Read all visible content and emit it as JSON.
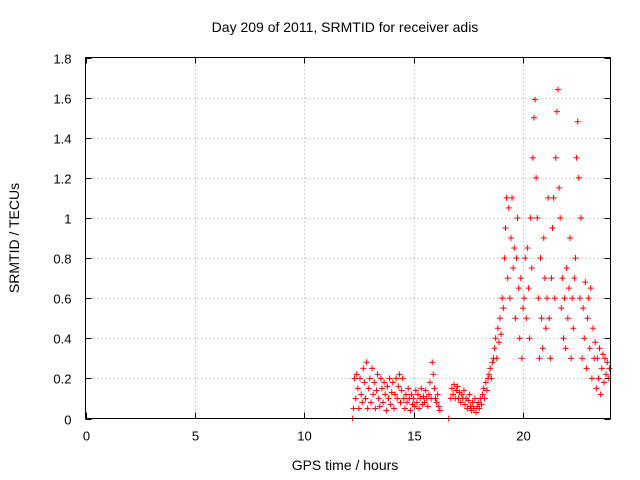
{
  "chart_data": {
    "type": "scatter",
    "title": "Day 209 of 2011, SRMTID for receiver adis",
    "xlabel": "GPS time / hours",
    "ylabel": "SRMTID / TECUs",
    "xlim": [
      0,
      24
    ],
    "ylim": [
      0,
      1.8
    ],
    "xticks": [
      0,
      5,
      10,
      15,
      20
    ],
    "yticks": [
      0,
      0.2,
      0.4,
      0.6,
      0.8,
      1,
      1.2,
      1.4,
      1.6,
      1.8
    ],
    "grid": true,
    "marker": "plus",
    "color": "#ff0000",
    "series": [
      {
        "name": "SRMTID",
        "points": [
          [
            12.2,
            0.0
          ],
          [
            12.25,
            0.05
          ],
          [
            12.3,
            0.2
          ],
          [
            12.35,
            0.1
          ],
          [
            12.4,
            0.22
          ],
          [
            12.45,
            0.15
          ],
          [
            12.5,
            0.05
          ],
          [
            12.55,
            0.2
          ],
          [
            12.6,
            0.12
          ],
          [
            12.65,
            0.08
          ],
          [
            12.7,
            0.25
          ],
          [
            12.75,
            0.18
          ],
          [
            12.8,
            0.1
          ],
          [
            12.85,
            0.28
          ],
          [
            12.9,
            0.05
          ],
          [
            12.95,
            0.15
          ],
          [
            13.0,
            0.2
          ],
          [
            13.05,
            0.08
          ],
          [
            13.1,
            0.25
          ],
          [
            13.15,
            0.12
          ],
          [
            13.2,
            0.18
          ],
          [
            13.25,
            0.05
          ],
          [
            13.3,
            0.14
          ],
          [
            13.35,
            0.22
          ],
          [
            13.4,
            0.1
          ],
          [
            13.45,
            0.06
          ],
          [
            13.5,
            0.2
          ],
          [
            13.55,
            0.15
          ],
          [
            13.6,
            0.08
          ],
          [
            13.65,
            0.18
          ],
          [
            13.7,
            0.12
          ],
          [
            13.75,
            0.04
          ],
          [
            13.8,
            0.16
          ],
          [
            13.85,
            0.1
          ],
          [
            13.9,
            0.2
          ],
          [
            13.95,
            0.07
          ],
          [
            14.0,
            0.13
          ],
          [
            14.05,
            0.18
          ],
          [
            14.1,
            0.05
          ],
          [
            14.15,
            0.12
          ],
          [
            14.2,
            0.2
          ],
          [
            14.25,
            0.1
          ],
          [
            14.3,
            0.16
          ],
          [
            14.35,
            0.22
          ],
          [
            14.4,
            0.08
          ],
          [
            14.45,
            0.14
          ],
          [
            14.5,
            0.2
          ],
          [
            14.55,
            0.1
          ],
          [
            14.6,
            0.05
          ],
          [
            14.65,
            0.12
          ],
          [
            14.7,
            0.08
          ],
          [
            14.75,
            0.15
          ],
          [
            14.8,
            0.1
          ],
          [
            14.85,
            0.04
          ],
          [
            14.9,
            0.12
          ],
          [
            14.95,
            0.07
          ],
          [
            15.0,
            0.1
          ],
          [
            15.05,
            0.06
          ],
          [
            15.1,
            0.14
          ],
          [
            15.15,
            0.08
          ],
          [
            15.2,
            0.12
          ],
          [
            15.25,
            0.05
          ],
          [
            15.3,
            0.1
          ],
          [
            15.35,
            0.15
          ],
          [
            15.4,
            0.07
          ],
          [
            15.45,
            0.11
          ],
          [
            15.5,
            0.08
          ],
          [
            15.55,
            0.14
          ],
          [
            15.6,
            0.1
          ],
          [
            15.65,
            0.06
          ],
          [
            15.7,
            0.12
          ],
          [
            15.75,
            0.18
          ],
          [
            15.8,
            0.1
          ],
          [
            15.85,
            0.28
          ],
          [
            15.9,
            0.22
          ],
          [
            15.95,
            0.15
          ],
          [
            16.0,
            0.1
          ],
          [
            16.05,
            0.08
          ],
          [
            16.1,
            0.12
          ],
          [
            16.15,
            0.06
          ],
          [
            16.2,
            0.04
          ],
          [
            16.6,
            0.0
          ],
          [
            16.7,
            0.1
          ],
          [
            16.75,
            0.15
          ],
          [
            16.8,
            0.12
          ],
          [
            16.85,
            0.17
          ],
          [
            16.9,
            0.1
          ],
          [
            16.95,
            0.14
          ],
          [
            17.0,
            0.16
          ],
          [
            17.05,
            0.1
          ],
          [
            17.1,
            0.13
          ],
          [
            17.15,
            0.08
          ],
          [
            17.2,
            0.12
          ],
          [
            17.25,
            0.1
          ],
          [
            17.3,
            0.14
          ],
          [
            17.35,
            0.07
          ],
          [
            17.4,
            0.1
          ],
          [
            17.45,
            0.05
          ],
          [
            17.5,
            0.09
          ],
          [
            17.55,
            0.12
          ],
          [
            17.6,
            0.06
          ],
          [
            17.65,
            0.04
          ],
          [
            17.7,
            0.08
          ],
          [
            17.75,
            0.05
          ],
          [
            17.8,
            0.1
          ],
          [
            17.85,
            0.03
          ],
          [
            17.9,
            0.06
          ],
          [
            17.95,
            0.08
          ],
          [
            18.0,
            0.05
          ],
          [
            18.05,
            0.1
          ],
          [
            18.1,
            0.07
          ],
          [
            18.15,
            0.12
          ],
          [
            18.2,
            0.15
          ],
          [
            18.25,
            0.1
          ],
          [
            18.3,
            0.18
          ],
          [
            18.35,
            0.14
          ],
          [
            18.4,
            0.2
          ],
          [
            18.45,
            0.22
          ],
          [
            18.5,
            0.25
          ],
          [
            18.55,
            0.2
          ],
          [
            18.6,
            0.28
          ],
          [
            18.65,
            0.3
          ],
          [
            18.7,
            0.35
          ],
          [
            18.75,
            0.4
          ],
          [
            18.8,
            0.3
          ],
          [
            18.85,
            0.45
          ],
          [
            18.9,
            0.38
          ],
          [
            18.95,
            0.5
          ],
          [
            19.0,
            0.42
          ],
          [
            19.05,
            0.6
          ],
          [
            19.1,
            0.55
          ],
          [
            19.15,
            0.8
          ],
          [
            19.2,
            0.95
          ],
          [
            19.25,
            1.1
          ],
          [
            19.3,
            0.7
          ],
          [
            19.35,
            1.05
          ],
          [
            19.4,
            0.6
          ],
          [
            19.45,
            0.9
          ],
          [
            19.5,
            1.1
          ],
          [
            19.55,
            0.75
          ],
          [
            19.6,
            0.85
          ],
          [
            19.65,
            0.5
          ],
          [
            19.7,
            0.8
          ],
          [
            19.75,
            1.0
          ],
          [
            19.8,
            0.65
          ],
          [
            19.85,
            0.4
          ],
          [
            19.9,
            0.7
          ],
          [
            19.95,
            0.3
          ],
          [
            20.0,
            0.55
          ],
          [
            20.05,
            0.6
          ],
          [
            20.1,
            0.8
          ],
          [
            20.15,
            0.5
          ],
          [
            20.2,
            0.85
          ],
          [
            20.25,
            0.65
          ],
          [
            20.3,
            0.4
          ],
          [
            20.35,
            1.0
          ],
          [
            20.4,
            0.75
          ],
          [
            20.45,
            1.3
          ],
          [
            20.5,
            1.5
          ],
          [
            20.55,
            1.59
          ],
          [
            20.6,
            1.2
          ],
          [
            20.65,
            1.0
          ],
          [
            20.7,
            0.6
          ],
          [
            20.75,
            0.3
          ],
          [
            20.8,
            0.8
          ],
          [
            20.85,
            0.5
          ],
          [
            20.9,
            0.35
          ],
          [
            20.95,
            0.9
          ],
          [
            21.0,
            0.7
          ],
          [
            21.05,
            0.45
          ],
          [
            21.1,
            0.6
          ],
          [
            21.15,
            1.1
          ],
          [
            21.2,
            0.5
          ],
          [
            21.25,
            0.3
          ],
          [
            21.3,
            0.7
          ],
          [
            21.35,
            0.95
          ],
          [
            21.4,
            1.1
          ],
          [
            21.45,
            0.6
          ],
          [
            21.5,
            1.3
          ],
          [
            21.55,
            1.53
          ],
          [
            21.6,
            1.64
          ],
          [
            21.65,
            1.15
          ],
          [
            21.7,
            1.0
          ],
          [
            21.75,
            0.55
          ],
          [
            21.8,
            0.7
          ],
          [
            21.85,
            0.4
          ],
          [
            21.9,
            0.6
          ],
          [
            21.95,
            0.35
          ],
          [
            22.0,
            0.75
          ],
          [
            22.05,
            0.5
          ],
          [
            22.1,
            0.65
          ],
          [
            22.15,
            0.9
          ],
          [
            22.2,
            0.3
          ],
          [
            22.25,
            0.6
          ],
          [
            22.3,
            0.45
          ],
          [
            22.35,
            0.7
          ],
          [
            22.4,
            0.8
          ],
          [
            22.45,
            1.3
          ],
          [
            22.5,
            1.48
          ],
          [
            22.55,
            1.2
          ],
          [
            22.6,
            0.6
          ],
          [
            22.65,
            1.0
          ],
          [
            22.7,
            0.3
          ],
          [
            22.75,
            0.55
          ],
          [
            22.8,
            0.4
          ],
          [
            22.85,
            0.68
          ],
          [
            22.9,
            0.25
          ],
          [
            22.95,
            0.5
          ],
          [
            23.0,
            0.6
          ],
          [
            23.05,
            0.35
          ],
          [
            23.1,
            0.65
          ],
          [
            23.15,
            0.2
          ],
          [
            23.2,
            0.45
          ],
          [
            23.25,
            0.3
          ],
          [
            23.3,
            0.38
          ],
          [
            23.35,
            0.15
          ],
          [
            23.4,
            0.3
          ],
          [
            23.45,
            0.2
          ],
          [
            23.5,
            0.35
          ],
          [
            23.55,
            0.12
          ],
          [
            23.6,
            0.25
          ],
          [
            23.65,
            0.32
          ],
          [
            23.7,
            0.18
          ],
          [
            23.75,
            0.3
          ],
          [
            23.8,
            0.22
          ],
          [
            23.85,
            0.28
          ],
          [
            23.9,
            0.2
          ],
          [
            23.95,
            0.25
          ]
        ]
      }
    ]
  }
}
